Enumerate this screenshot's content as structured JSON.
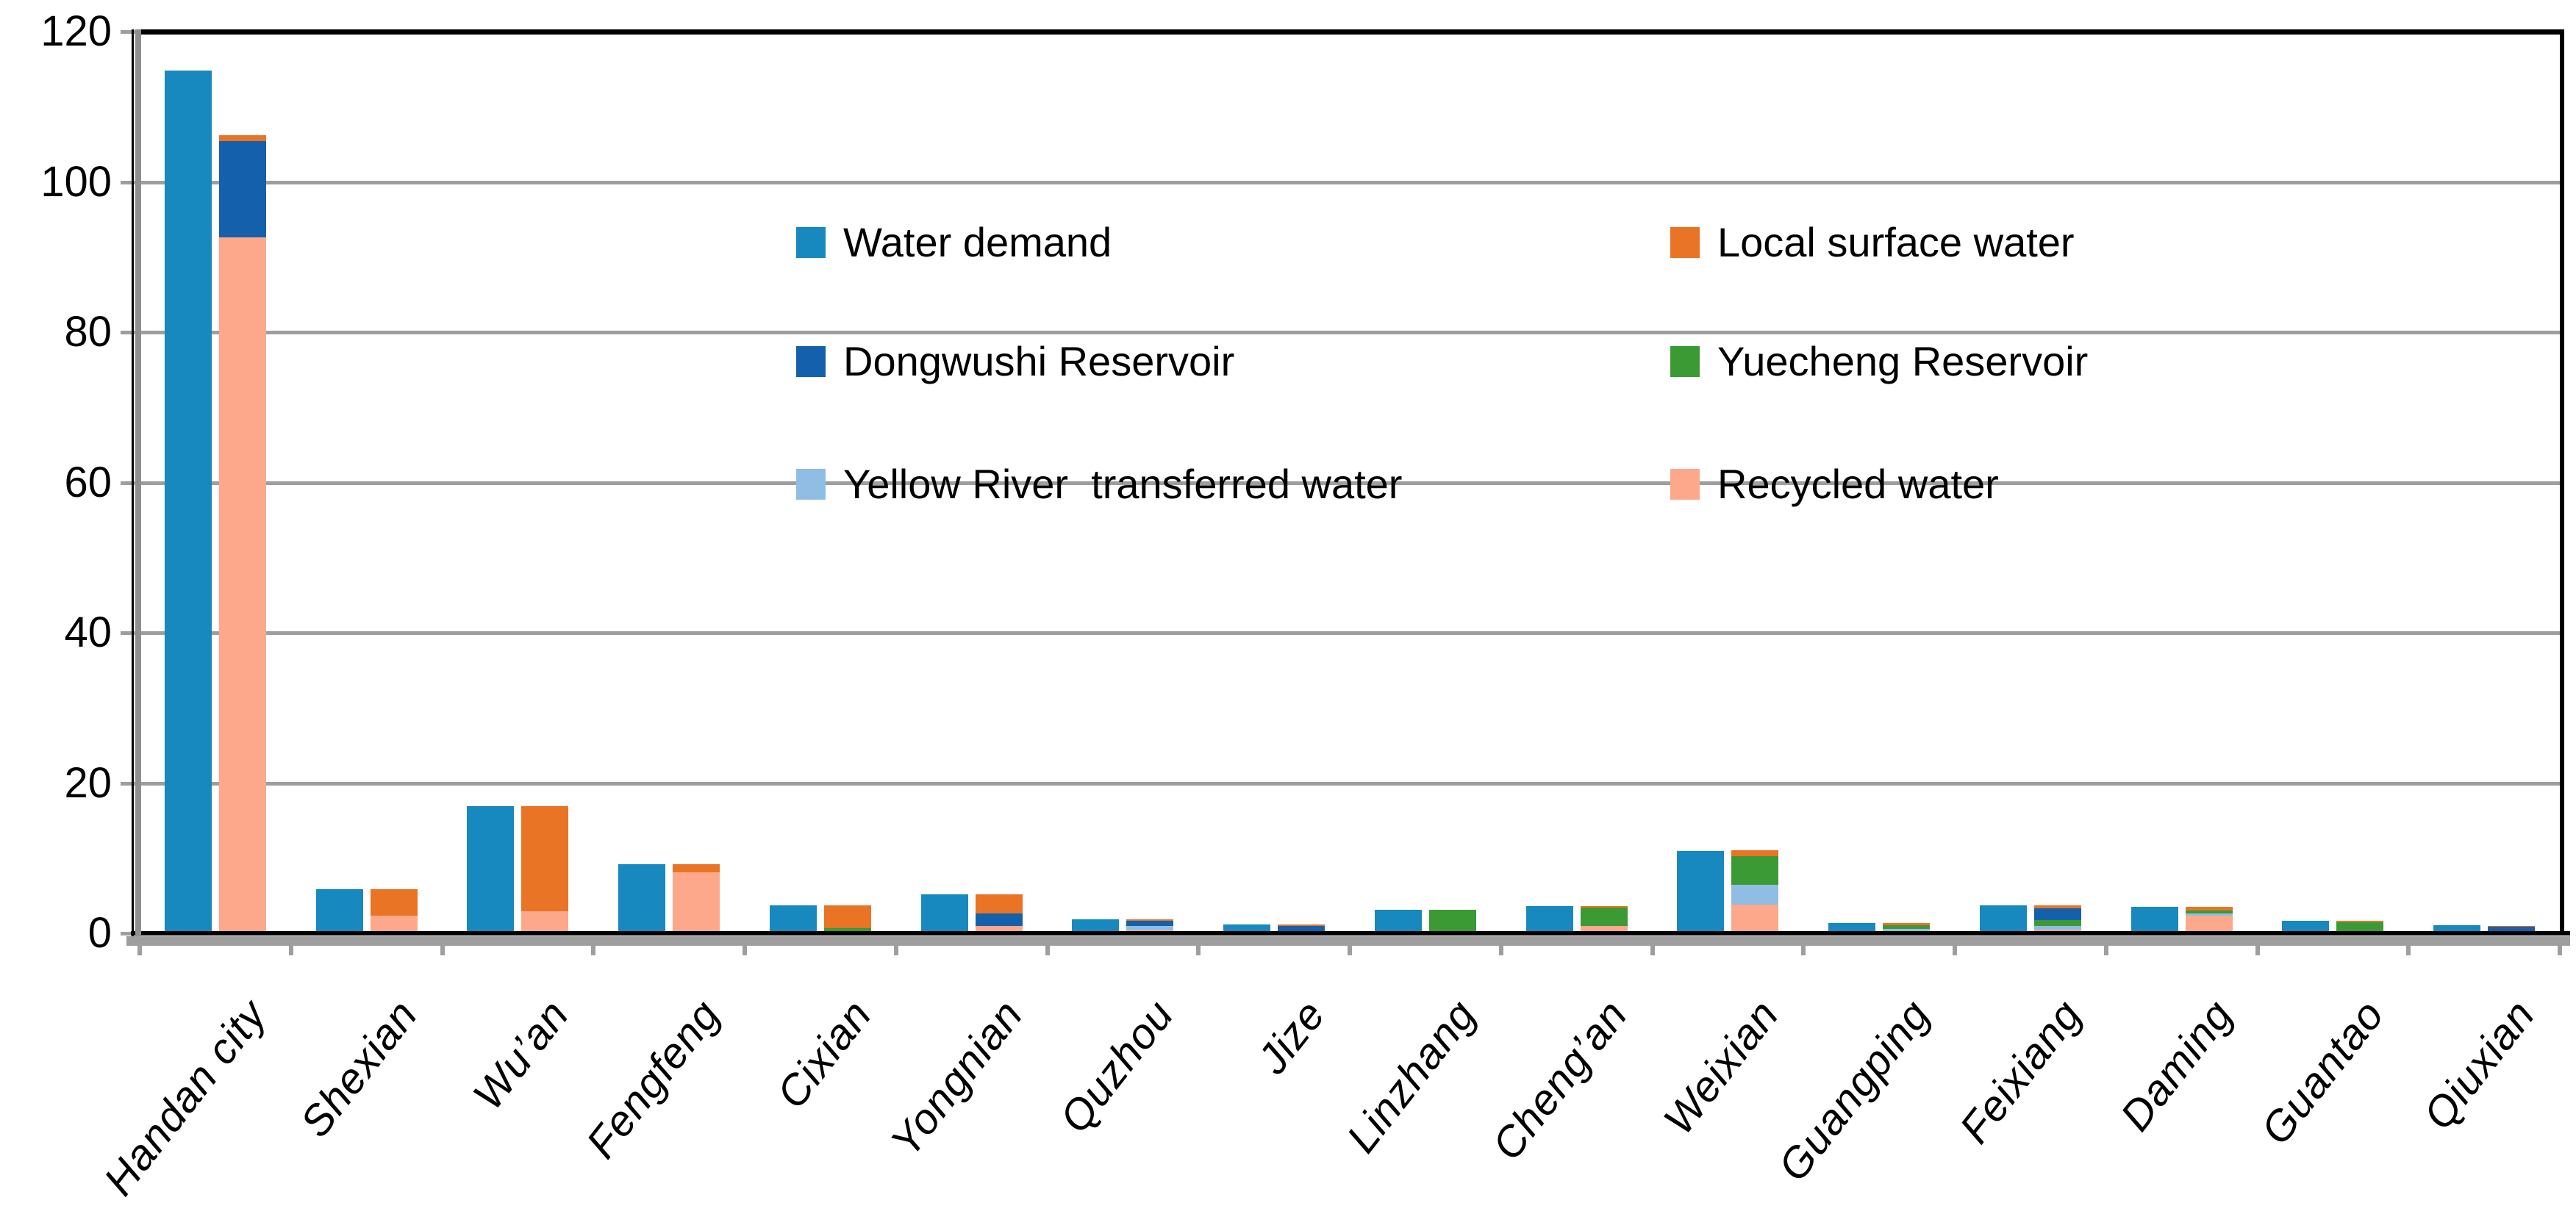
{
  "page": {
    "background": "#ffffff"
  },
  "legend": {
    "items": [
      {
        "label": "Water demand",
        "color": "#1789BE"
      },
      {
        "label": "Local surface water",
        "color": "#E97425"
      },
      {
        "label": "Dongwushi Reservoir",
        "color": "#1560AC"
      },
      {
        "label": "Yuecheng Reservoir",
        "color": "#3B9A34"
      },
      {
        "label": "Yellow River  transferred water",
        "color": "#90BDE3"
      },
      {
        "label": "Recycled water",
        "color": "#FDA88A"
      }
    ]
  },
  "chart_data": {
    "type": "bar",
    "title": "",
    "xlabel": "",
    "ylabel": "",
    "grid": true,
    "legend_position": "inside-top",
    "y_axis": {
      "min": 0,
      "max": 120,
      "step": 20,
      "ticks": [
        0,
        20,
        40,
        60,
        80,
        100,
        120
      ]
    },
    "categories": [
      "Handan city",
      "Shexian",
      "Wu’an",
      "Fengfeng",
      "Cixian",
      "Yongnian",
      "Quzhou",
      "Jize",
      "Linzhang",
      "Cheng’an",
      "Weixian",
      "Guangping",
      "Feixiang",
      "Daming",
      "Guantao",
      "Qiuxian"
    ],
    "bar_layout": "one grouped bar (Water demand) beside one stacked bar (all supply sources) per category",
    "series": [
      {
        "name": "Water demand",
        "role": "grouped",
        "color": "#1789BE",
        "values": [
          114.8,
          5.9,
          16.9,
          9.2,
          3.7,
          5.2,
          1.9,
          1.2,
          3.1,
          3.6,
          11.0,
          1.4,
          3.7,
          3.5,
          1.7,
          1.1
        ]
      },
      {
        "name": "Local surface water",
        "role": "stacked",
        "color": "#E97425",
        "values": [
          0.8,
          3.6,
          14.0,
          1.1,
          3.0,
          2.6,
          0.25,
          0.2,
          0,
          0.2,
          0.8,
          0.3,
          0.35,
          0.45,
          0.2,
          0.15
        ]
      },
      {
        "name": "Dongwushi Reservoir",
        "role": "stacked",
        "color": "#1560AC",
        "values": [
          12.8,
          0,
          0,
          0,
          0,
          1.6,
          0.65,
          1.0,
          0,
          0,
          0,
          0,
          1.6,
          0,
          0,
          0.55
        ]
      },
      {
        "name": "Yuecheng Reservoir",
        "role": "stacked",
        "color": "#3B9A34",
        "values": [
          0,
          0,
          0,
          0,
          0.5,
          0,
          0,
          0,
          2.8,
          2.45,
          3.8,
          0.5,
          0.75,
          0.45,
          1.5,
          0
        ]
      },
      {
        "name": "Yellow River  transferred water",
        "role": "stacked",
        "color": "#90BDE3",
        "values": [
          0,
          0,
          0,
          0,
          0,
          0,
          0.6,
          0,
          0,
          0,
          2.7,
          0.6,
          0.5,
          0.25,
          0,
          0.3
        ]
      },
      {
        "name": "Recycled water",
        "role": "stacked",
        "color": "#FDA88A",
        "values": [
          92.6,
          2.3,
          2.9,
          8.1,
          0.2,
          1.0,
          0.4,
          0,
          0.3,
          1.0,
          3.8,
          0,
          0.5,
          2.35,
          0,
          0
        ]
      }
    ],
    "stack_order_bottom_to_top": [
      "Recycled water",
      "Yellow River  transferred water",
      "Yuecheng Reservoir",
      "Dongwushi Reservoir",
      "Local surface water"
    ]
  }
}
